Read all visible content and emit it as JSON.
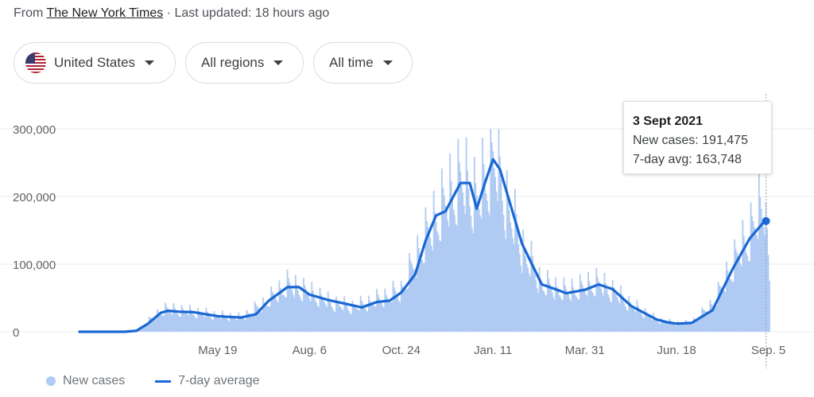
{
  "source": {
    "prefix": "From",
    "publisher": "The New York Times",
    "separator": "·",
    "updated": "Last updated: 18 hours ago"
  },
  "filters": {
    "location": {
      "label": "United States",
      "icon": "us-flag-icon"
    },
    "region": {
      "label": "All regions"
    },
    "range": {
      "label": "All time"
    }
  },
  "tooltip": {
    "date": "3 Sept 2021",
    "new_cases": "New cases: 191,475",
    "avg": "7-day avg: 163,748"
  },
  "legend": {
    "bars": "New cases",
    "line": "7-day average"
  },
  "colors": {
    "bar": "#b0cbf3",
    "line": "#1967d2",
    "grid": "#ebebeb",
    "axis_text": "#70757a"
  },
  "chart_data": {
    "type": "bar",
    "title": "",
    "xlabel": "",
    "ylabel": "",
    "ylim": [
      0,
      300000
    ],
    "y_ticks": [
      0,
      100000,
      200000,
      300000
    ],
    "y_tick_labels": [
      "0",
      "100,000",
      "200,000",
      "300,000"
    ],
    "x_ticks": [
      "2020-05-19",
      "2020-08-06",
      "2020-10-24",
      "2021-01-11",
      "2021-03-31",
      "2021-06-18",
      "2021-09-05"
    ],
    "x_tick_labels": [
      "May 19",
      "Aug. 6",
      "Oct. 24",
      "Jan. 11",
      "Mar. 31",
      "Jun. 18",
      "Sep. 5"
    ],
    "x_range": [
      "2020-01-21",
      "2021-09-06"
    ],
    "grid": true,
    "legend_position": "bottom-left",
    "highlight": {
      "date": "2021-09-03",
      "new_cases": 191475,
      "avg_7day": 163748
    },
    "series": [
      {
        "name": "New cases",
        "kind": "bar",
        "date_start": "2020-01-21",
        "date_end": "2021-09-06",
        "daily_keypoints": [
          [
            "2020-01-21",
            0
          ],
          [
            "2020-02-28",
            200
          ],
          [
            "2020-03-10",
            1000
          ],
          [
            "2020-03-20",
            15000
          ],
          [
            "2020-04-03",
            32000
          ],
          [
            "2020-04-24",
            29000
          ],
          [
            "2020-05-19",
            23000
          ],
          [
            "2020-06-08",
            20000
          ],
          [
            "2020-06-28",
            40000
          ],
          [
            "2020-07-18",
            67000
          ],
          [
            "2020-08-06",
            56000
          ],
          [
            "2020-08-25",
            41000
          ],
          [
            "2020-09-13",
            35000
          ],
          [
            "2020-10-03",
            45000
          ],
          [
            "2020-10-24",
            58000
          ],
          [
            "2020-11-10",
            120000
          ],
          [
            "2020-11-25",
            170000
          ],
          [
            "2020-12-14",
            218000
          ],
          [
            "2020-12-25",
            200000
          ],
          [
            "2020-12-29",
            185000
          ],
          [
            "2021-01-11",
            255000
          ],
          [
            "2021-01-20",
            200000
          ],
          [
            "2021-02-05",
            120000
          ],
          [
            "2021-02-22",
            68000
          ],
          [
            "2021-03-15",
            57000
          ],
          [
            "2021-03-31",
            64000
          ],
          [
            "2021-04-10",
            70000
          ],
          [
            "2021-04-25",
            57000
          ],
          [
            "2021-05-10",
            38000
          ],
          [
            "2021-06-01",
            17000
          ],
          [
            "2021-06-18",
            12000
          ],
          [
            "2021-07-01",
            13000
          ],
          [
            "2021-07-20",
            40000
          ],
          [
            "2021-08-05",
            95000
          ],
          [
            "2021-08-20",
            140000
          ],
          [
            "2021-09-03",
            191475
          ],
          [
            "2021-09-06",
            75000
          ]
        ]
      },
      {
        "name": "7-day average",
        "kind": "line",
        "date_start": "2020-01-21",
        "date_end": "2021-09-03",
        "keypoints": [
          [
            "2020-01-21",
            0
          ],
          [
            "2020-02-29",
            0
          ],
          [
            "2020-03-10",
            1500
          ],
          [
            "2020-03-20",
            12000
          ],
          [
            "2020-03-31",
            28000
          ],
          [
            "2020-04-06",
            31000
          ],
          [
            "2020-04-17",
            29500
          ],
          [
            "2020-04-28",
            29000
          ],
          [
            "2020-05-19",
            23000
          ],
          [
            "2020-06-08",
            21000
          ],
          [
            "2020-06-21",
            26000
          ],
          [
            "2020-07-02",
            46000
          ],
          [
            "2020-07-18",
            66000
          ],
          [
            "2020-07-28",
            66000
          ],
          [
            "2020-08-06",
            55000
          ],
          [
            "2020-08-22",
            47000
          ],
          [
            "2020-09-07",
            41000
          ],
          [
            "2020-09-20",
            36000
          ],
          [
            "2020-10-03",
            44000
          ],
          [
            "2020-10-14",
            46000
          ],
          [
            "2020-10-24",
            58000
          ],
          [
            "2020-11-05",
            85000
          ],
          [
            "2020-11-14",
            135000
          ],
          [
            "2020-11-23",
            172000
          ],
          [
            "2020-12-01",
            178000
          ],
          [
            "2020-12-14",
            220000
          ],
          [
            "2020-12-22",
            220000
          ],
          [
            "2020-12-28",
            182000
          ],
          [
            "2021-01-04",
            220000
          ],
          [
            "2021-01-11",
            255000
          ],
          [
            "2021-01-17",
            240000
          ],
          [
            "2021-02-05",
            130000
          ],
          [
            "2021-02-22",
            70000
          ],
          [
            "2021-03-04",
            64000
          ],
          [
            "2021-03-15",
            57000
          ],
          [
            "2021-03-31",
            62000
          ],
          [
            "2021-04-12",
            70000
          ],
          [
            "2021-04-24",
            63000
          ],
          [
            "2021-05-10",
            38000
          ],
          [
            "2021-06-01",
            18000
          ],
          [
            "2021-06-10",
            14000
          ],
          [
            "2021-06-18",
            12000
          ],
          [
            "2021-07-01",
            13000
          ],
          [
            "2021-07-19",
            32000
          ],
          [
            "2021-08-05",
            92000
          ],
          [
            "2021-08-20",
            138000
          ],
          [
            "2021-09-01",
            162000
          ],
          [
            "2021-09-03",
            163748
          ]
        ]
      }
    ]
  }
}
